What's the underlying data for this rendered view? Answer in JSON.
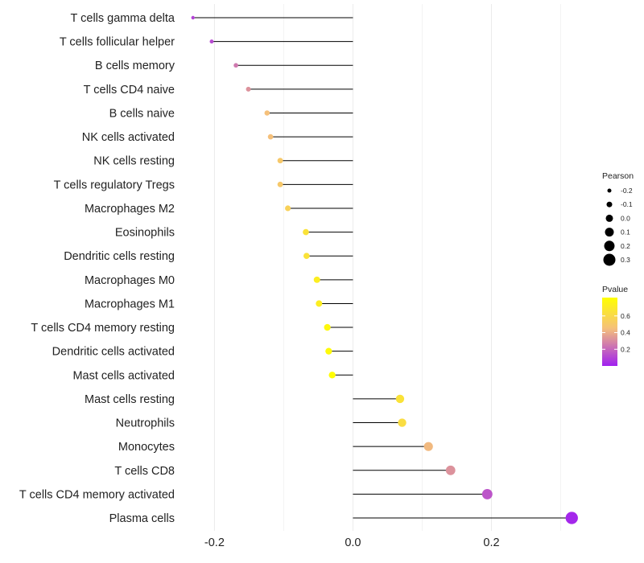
{
  "chart_data": {
    "type": "lollipop",
    "title": "",
    "xlabel": "",
    "ylabel": "",
    "xlim": [
      -0.24,
      0.325
    ],
    "x_ticks": [
      -0.2,
      0.0,
      0.2
    ],
    "x_tick_labels": [
      "-0.2",
      "0.0",
      "0.2"
    ],
    "grid": true,
    "legend_position": "right",
    "categories": [
      "T cells gamma delta",
      "T cells follicular helper",
      "B cells memory",
      "T cells CD4 naive",
      "B cells naive",
      "NK cells activated",
      "NK cells resting",
      "T cells regulatory  Tregs ",
      "Macrophages M2",
      "Eosinophils",
      "Dendritic cells resting",
      "Macrophages M0",
      "Macrophages M1",
      "T cells CD4 memory resting",
      "Dendritic cells activated",
      "Mast cells activated",
      "Mast cells resting",
      "Neutrophils",
      "Monocytes",
      "T cells CD8",
      "T cells CD4 memory activated",
      "Plasma cells"
    ],
    "pearson": [
      -0.231,
      -0.204,
      -0.169,
      -0.151,
      -0.124,
      -0.119,
      -0.105,
      -0.105,
      -0.094,
      -0.068,
      -0.067,
      -0.052,
      -0.049,
      -0.037,
      -0.035,
      -0.03,
      0.068,
      0.071,
      0.109,
      0.141,
      0.194,
      0.316
    ],
    "pvalue": [
      0.1,
      0.12,
      0.25,
      0.32,
      0.45,
      0.45,
      0.5,
      0.5,
      0.55,
      0.65,
      0.65,
      0.72,
      0.72,
      0.78,
      0.79,
      0.81,
      0.65,
      0.62,
      0.43,
      0.32,
      0.15,
      0.02
    ],
    "size_legend": {
      "title": "Pearson",
      "labels": [
        "-0.2",
        "-0.1",
        "0.0",
        "0.1",
        "0.2",
        "0.3"
      ],
      "values": [
        -0.2,
        -0.1,
        0.0,
        0.1,
        0.2,
        0.3
      ]
    },
    "color_legend": {
      "title": "Pvalue",
      "tick_labels": [
        "0.6",
        "0.4",
        "0.2"
      ],
      "tick_values": [
        0.6,
        0.4,
        0.2
      ],
      "range": [
        0.0,
        0.82
      ],
      "colors": [
        "#a020f0",
        "#f5c07a",
        "#ffff00"
      ]
    },
    "colors": {
      "line": "#000000",
      "grid": "#ebebeb",
      "low_p": "#a020f0",
      "mid_p": "#f5c07a",
      "high_p": "#ffff00"
    }
  }
}
